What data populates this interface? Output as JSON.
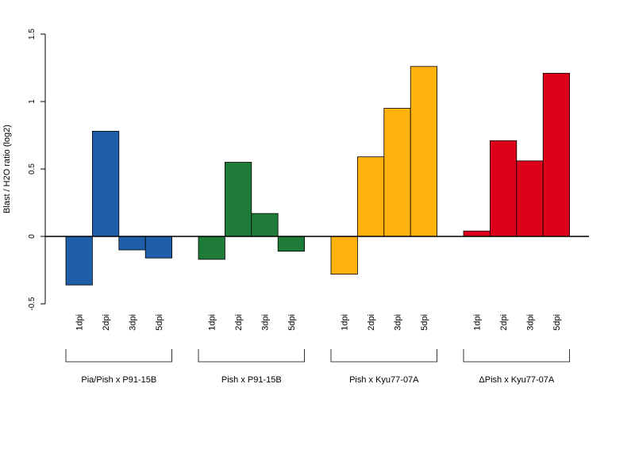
{
  "chart_data": {
    "type": "bar",
    "ylabel": "Blast / H2O ratio (log2)",
    "ylim": [
      -0.5,
      1.5
    ],
    "yticks": [
      "-0.5",
      "0",
      "0.5",
      "1",
      "1.5"
    ],
    "categories": [
      "1dpi",
      "2dpi",
      "3dpi",
      "5dpi"
    ],
    "grid": false,
    "groups": [
      {
        "name": "Pia/Pish x P91-15B",
        "color": "#1f5faa",
        "values": [
          -0.36,
          0.78,
          -0.1,
          -0.16
        ]
      },
      {
        "name": "Pish x P91-15B",
        "color": "#1e7b38",
        "values": [
          -0.17,
          0.55,
          0.17,
          -0.11
        ]
      },
      {
        "name": "Pish x Kyu77-07A",
        "color": "#ffb20b",
        "values": [
          -0.28,
          0.59,
          0.95,
          1.26
        ]
      },
      {
        "name": "ΔPish x Kyu77-07A",
        "color": "#dc001a",
        "values": [
          0.04,
          0.71,
          0.56,
          1.21
        ]
      }
    ]
  }
}
